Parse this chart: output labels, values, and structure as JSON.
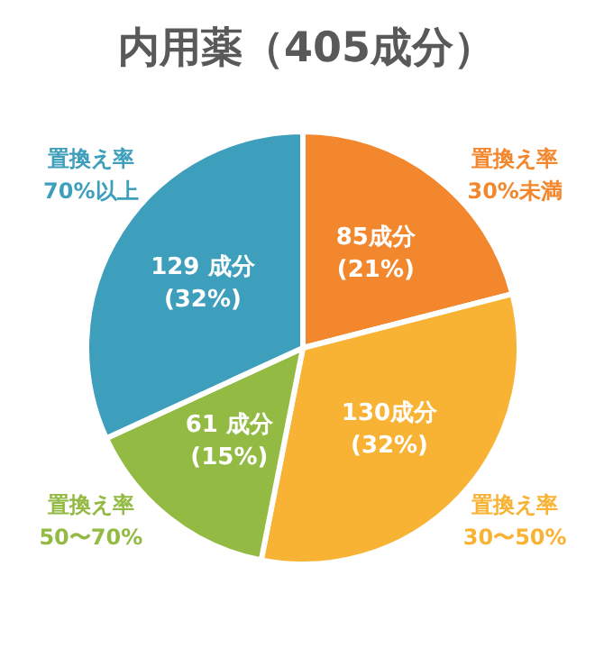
{
  "chart_data": {
    "type": "pie",
    "title": "内用薬（405成分）",
    "categories": [
      "置換え率\n30%未満",
      "置換え率\n30〜50%",
      "置換え率\n50〜70%",
      "置換え率\n70%以上"
    ],
    "values": [
      85,
      130,
      61,
      129
    ],
    "colors": [
      "#f2872d",
      "#f8b334",
      "#93bb44",
      "#3d9fbb"
    ],
    "value_labels": [
      "85成分\n(21%)",
      "130成分\n(32%)",
      "61 成分\n(15%)",
      "129 成分\n(32%)"
    ]
  }
}
